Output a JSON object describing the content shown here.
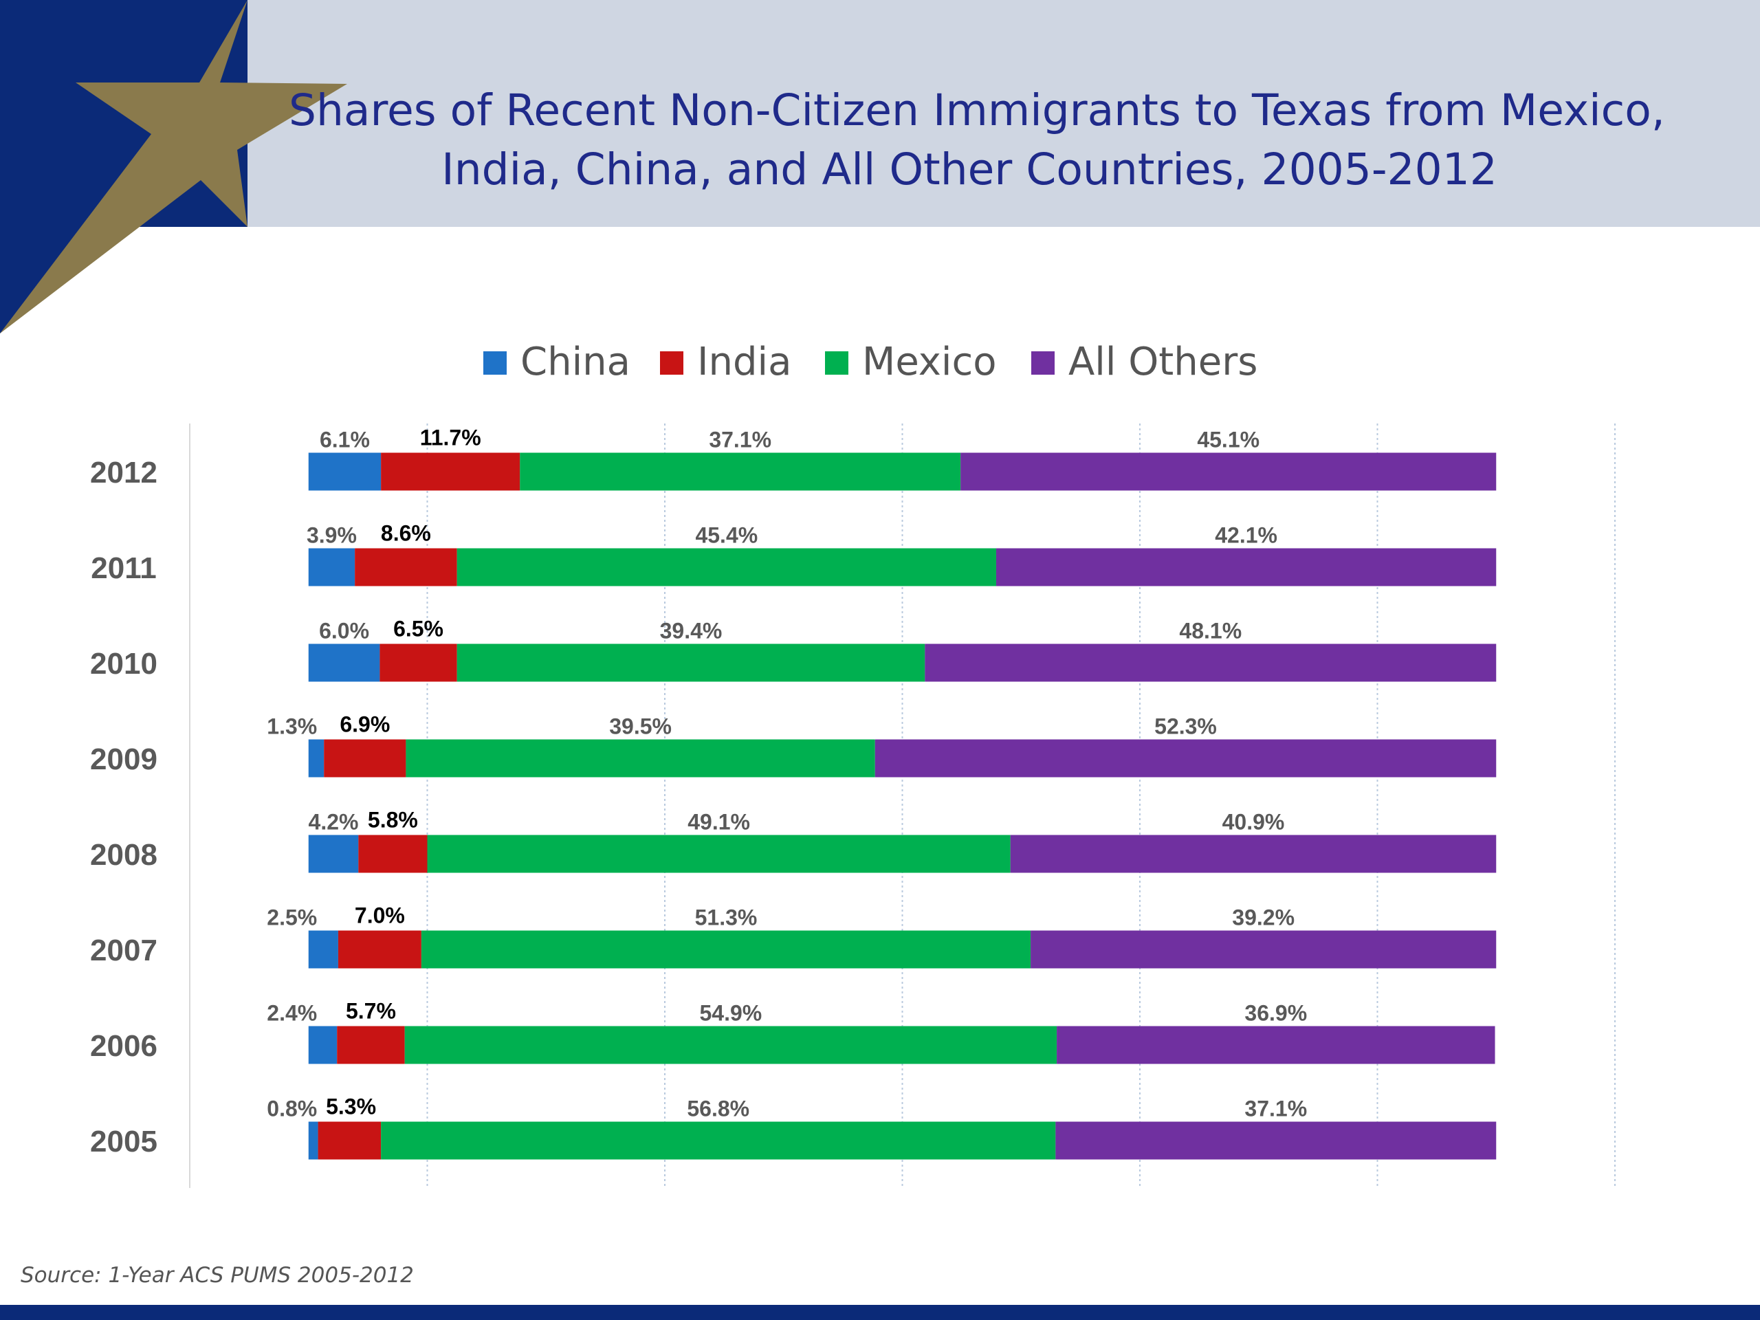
{
  "theme": {
    "navy": "#0b2a78",
    "gold": "#8a7a4c",
    "band": "#cfd6e2",
    "title_color": "#1f2a8a"
  },
  "title_lines": [
    "Shares of Recent Non-Citizen Immigrants to Texas from Mexico,",
    "India, China, and All Other Countries, 2005-2012"
  ],
  "source": "Source: 1-Year ACS PUMS 2005-2012",
  "chart_data": {
    "type": "bar",
    "orientation": "horizontal",
    "stacked": true,
    "categories": [
      "2012",
      "2011",
      "2010",
      "2009",
      "2008",
      "2007",
      "2006",
      "2005"
    ],
    "series": [
      {
        "name": "China",
        "color": "#1f73c8",
        "values": [
          6.1,
          3.9,
          6.0,
          1.3,
          4.2,
          2.5,
          2.4,
          0.8
        ],
        "labels": [
          "6.1%",
          "3.9%",
          "6.0%",
          "1.3%",
          "4.2%",
          "2.5%",
          "2.4%",
          "0.8%"
        ]
      },
      {
        "name": "India",
        "color": "#c81414",
        "values": [
          11.7,
          8.6,
          6.5,
          6.9,
          5.8,
          7.0,
          5.7,
          5.3
        ],
        "labels": [
          "11.7%",
          "8.6%",
          "6.5%",
          "6.9%",
          "5.8%",
          "7.0%",
          "5.7%",
          "5.3%"
        ]
      },
      {
        "name": "Mexico",
        "color": "#00b050",
        "values": [
          37.1,
          45.4,
          39.4,
          39.5,
          49.1,
          51.3,
          54.9,
          56.8
        ],
        "labels": [
          "37.1%",
          "45.4%",
          "39.4%",
          "39.5%",
          "49.1%",
          "51.3%",
          "54.9%",
          "56.8%"
        ]
      },
      {
        "name": "All Others",
        "color": "#7030a0",
        "values": [
          45.1,
          42.1,
          48.1,
          52.3,
          40.9,
          39.2,
          36.9,
          37.1
        ],
        "labels": [
          "45.1%",
          "42.1%",
          "48.1%",
          "52.3%",
          "40.9%",
          "39.2%",
          "36.9%",
          "37.1%"
        ]
      }
    ],
    "xlim": [
      -10,
      110
    ],
    "grid": true,
    "x_tick_labels_visible": false,
    "legend": "top-center"
  }
}
